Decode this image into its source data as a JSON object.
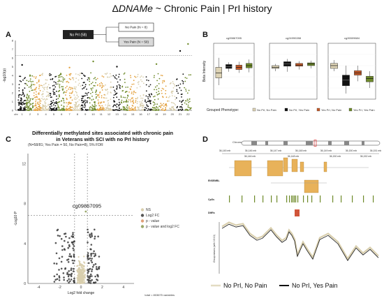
{
  "header": {
    "delta": "Δ",
    "title_italic": "DNAMe",
    "title_rest": " ~ Chronic Pain | PrI history"
  },
  "panel_a": {
    "letter": "A",
    "ylabel": "-log10(p)",
    "y_ticks": [
      "0",
      "1",
      "2",
      "3",
      "4",
      "5",
      "6",
      "7",
      "8"
    ],
    "x_ticks": [
      "chr",
      "1",
      "2",
      "3",
      "4",
      "5",
      "6",
      "7",
      "8",
      "9",
      "10",
      "11",
      "12",
      "13",
      "14",
      "15",
      "16",
      "17",
      "18",
      "19",
      "20",
      "21",
      "22"
    ],
    "flow": {
      "root": "No PrI (58)",
      "branch_top": "No Pain (N = 8)",
      "branch_bottom": "Yes Pain (N = 50)"
    },
    "colors": [
      "#111111",
      "#6e8a2a",
      "#e3a13e",
      "#d9cfae"
    ]
  },
  "panel_b": {
    "letter": "B",
    "ylabel": "Beta Intensity",
    "cpgs": [
      "cg09867095",
      "cg24990288",
      "cg26509684"
    ],
    "legend_title": "Grouped Phenotype:",
    "legend": [
      {
        "label": "No PrI, No Pain",
        "color": "#ddd3b5"
      },
      {
        "label": "No PrI, Yes Pain",
        "color": "#111111"
      },
      {
        "label": "Yes PrI, No Pain",
        "color": "#c45a2a"
      },
      {
        "label": "Yes PrI, Yes Pain",
        "color": "#6e8a2a"
      }
    ],
    "boxes": [
      [
        [
          0.25,
          0.38,
          0.47,
          0.57,
          0.74
        ],
        [
          0.49,
          0.55,
          0.58,
          0.62,
          0.66
        ],
        [
          0.47,
          0.53,
          0.57,
          0.61,
          0.67
        ],
        [
          0.48,
          0.56,
          0.6,
          0.64,
          0.71
        ]
      ],
      [
        [
          0.5,
          0.55,
          0.57,
          0.6,
          0.63
        ],
        [
          0.49,
          0.59,
          0.63,
          0.67,
          0.72
        ],
        [
          0.53,
          0.59,
          0.61,
          0.64,
          0.68
        ],
        [
          0.55,
          0.6,
          0.63,
          0.65,
          0.69
        ]
      ],
      [
        [
          0.5,
          0.55,
          0.6,
          0.64,
          0.7
        ],
        [
          0.1,
          0.24,
          0.34,
          0.43,
          0.6
        ],
        [
          0.32,
          0.43,
          0.47,
          0.51,
          0.6
        ],
        [
          0.2,
          0.31,
          0.37,
          0.41,
          0.5
        ]
      ]
    ]
  },
  "panel_c": {
    "letter": "C",
    "title_line1": "Differentially methylated sites associated with chronic pain",
    "title_line2": "in Veterans with SCI with no PrI history",
    "subtitle": "(N=58/81; Yes Pain = 50, No Pain=8), 5% FDR",
    "ylabel": "-Log10 P",
    "xlabel": "Log2 fold change",
    "y_ticks": [
      "0",
      "4",
      "8",
      "12"
    ],
    "x_ticks": [
      "-4",
      "-2",
      "0",
      "2",
      "4"
    ],
    "highlight_label": "cg09867095",
    "legend": [
      {
        "label": "NS",
        "color": "#d9cfae"
      },
      {
        "label": "Log2 FC",
        "color": "#555555"
      },
      {
        "label": "p - value",
        "color": "#e0a07a"
      },
      {
        "label": "p - value and log2 FC",
        "color": "#9aa86a"
      }
    ],
    "footer": "total = 803675 variables"
  },
  "panel_d": {
    "letter": "D",
    "chromosome": "Chromosome 20",
    "coords_top": [
      "36,145 mb",
      "36,146 mb",
      "36,147 mb",
      "36,148 mb",
      "36,149 mb",
      "36,150 mb",
      "36,151 mb"
    ],
    "coords_bottom": [
      "36,146 mb",
      "36,148 mb",
      "36,150 mb",
      "36,152 mb"
    ],
    "tracks": [
      "ENSEMBL",
      "CpGs",
      "DMRs"
    ],
    "ylabel": "Group means (with 0.5 CI)",
    "legend": [
      {
        "label": "No PrI, No Pain",
        "color": "#e3dcc2"
      },
      {
        "label": "No PrI, Yes Pain",
        "color": "#111111"
      }
    ]
  }
}
